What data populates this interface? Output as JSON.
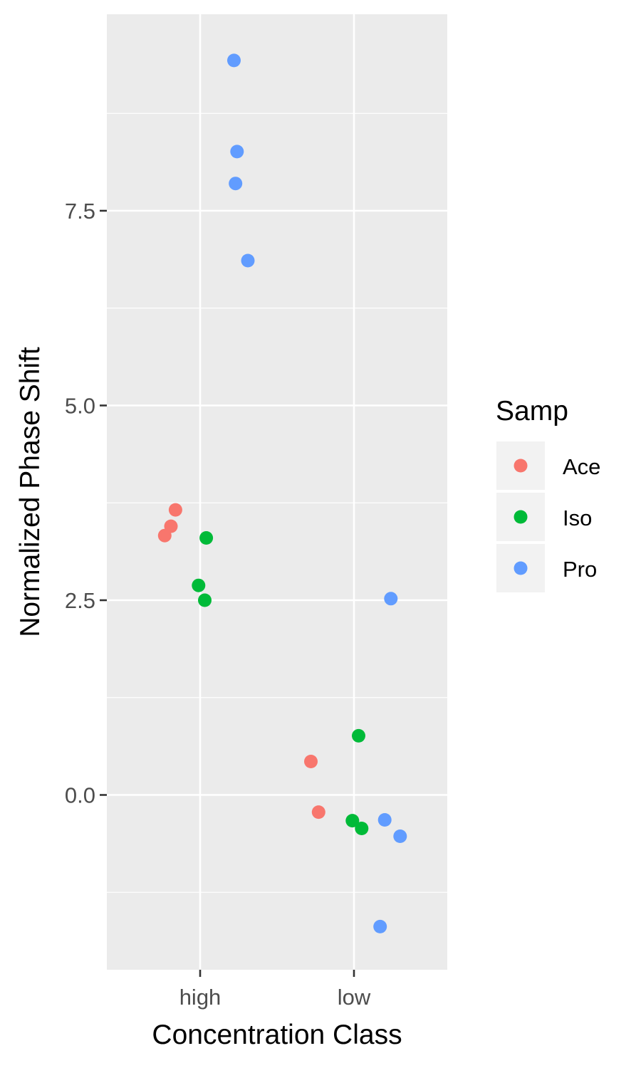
{
  "chart_data": {
    "type": "scatter",
    "title": "",
    "xlabel": "Concentration Class",
    "ylabel": "Normalized Phase Shift",
    "categories": [
      "high",
      "low"
    ],
    "ylim": [
      -2.25,
      10.0
    ],
    "yticks": [
      0.0,
      2.5,
      5.0,
      7.5
    ],
    "ytick_labels": [
      "0.0",
      "2.5",
      "5.0",
      "7.5"
    ],
    "grid": true,
    "legend": {
      "title": "Samp",
      "position": "right"
    },
    "series": [
      {
        "name": "Ace",
        "color": "#F8766D",
        "points": [
          {
            "category": "high",
            "jitter": -0.23,
            "y": 3.33
          },
          {
            "category": "high",
            "jitter": -0.19,
            "y": 3.45
          },
          {
            "category": "high",
            "jitter": -0.16,
            "y": 3.66
          },
          {
            "category": "low",
            "jitter": -0.28,
            "y": 0.43
          },
          {
            "category": "low",
            "jitter": -0.23,
            "y": -0.22
          }
        ]
      },
      {
        "name": "Iso",
        "color": "#00BA38",
        "points": [
          {
            "category": "high",
            "jitter": -0.01,
            "y": 2.69
          },
          {
            "category": "high",
            "jitter": 0.03,
            "y": 2.5
          },
          {
            "category": "high",
            "jitter": 0.04,
            "y": 3.3
          },
          {
            "category": "low",
            "jitter": 0.03,
            "y": 0.76
          },
          {
            "category": "low",
            "jitter": -0.01,
            "y": -0.33
          },
          {
            "category": "low",
            "jitter": 0.05,
            "y": -0.43
          }
        ]
      },
      {
        "name": "Pro",
        "color": "#619CFF",
        "points": [
          {
            "category": "high",
            "jitter": 0.22,
            "y": 9.43
          },
          {
            "category": "high",
            "jitter": 0.24,
            "y": 8.26
          },
          {
            "category": "high",
            "jitter": 0.23,
            "y": 7.85
          },
          {
            "category": "high",
            "jitter": 0.31,
            "y": 6.86
          },
          {
            "category": "low",
            "jitter": 0.24,
            "y": 2.52
          },
          {
            "category": "low",
            "jitter": 0.2,
            "y": -0.32
          },
          {
            "category": "low",
            "jitter": 0.3,
            "y": -0.53
          },
          {
            "category": "low",
            "jitter": 0.17,
            "y": -1.69
          }
        ]
      }
    ]
  }
}
